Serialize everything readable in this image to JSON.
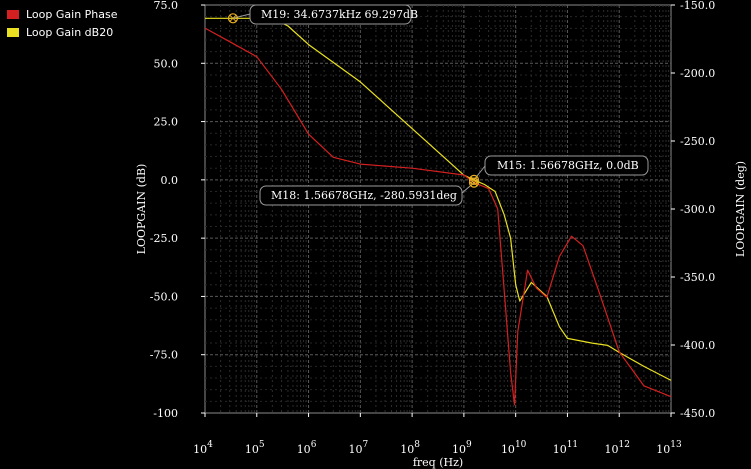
{
  "legend": {
    "items": [
      {
        "label": "Loop Gain Phase",
        "color": "#d42020"
      },
      {
        "label": "Loop Gain dB20",
        "color": "#e8e020"
      }
    ]
  },
  "chart_data": {
    "type": "line",
    "xlabel": "freq (Hz)",
    "ylabel_left": "LOOPGAIN (dB)",
    "ylabel_right": "LOOPGAIN (deg)",
    "x_scale": "log",
    "xlim": [
      10000,
      10000000000000
    ],
    "ylim_left": [
      -100,
      75
    ],
    "ylim_right": [
      -450,
      -150
    ],
    "x_ticks": [
      {
        "base": "10",
        "exp": "4",
        "value": 10000
      },
      {
        "base": "10",
        "exp": "5",
        "value": 100000
      },
      {
        "base": "10",
        "exp": "6",
        "value": 1000000
      },
      {
        "base": "10",
        "exp": "7",
        "value": 10000000
      },
      {
        "base": "10",
        "exp": "8",
        "value": 100000000
      },
      {
        "base": "10",
        "exp": "9",
        "value": 1000000000
      },
      {
        "base": "10",
        "exp": "10",
        "value": 10000000000
      },
      {
        "base": "10",
        "exp": "11",
        "value": 100000000000
      },
      {
        "base": "10",
        "exp": "12",
        "value": 1000000000000
      },
      {
        "base": "10",
        "exp": "13",
        "value": 10000000000000
      }
    ],
    "y_ticks_left": [
      "75.0",
      "50.0",
      "25.0",
      "0.0",
      "-25.0",
      "-50.0",
      "-75.0",
      "-100"
    ],
    "y_ticks_left_values": [
      75,
      50,
      25,
      0,
      -25,
      -50,
      -75,
      -100
    ],
    "y_ticks_right": [
      "-150.0",
      "-200.0",
      "-250.0",
      "-300.0",
      "-350.0",
      "-400.0",
      "-450.0"
    ],
    "y_ticks_right_values": [
      -150,
      -200,
      -250,
      -300,
      -350,
      -400,
      -450
    ],
    "grid": true,
    "legend_position": "top-left outside",
    "series": [
      {
        "name": "Loop Gain dB20",
        "color": "#e8e020",
        "axis": "left",
        "points": [
          [
            10000,
            69.3
          ],
          [
            34673.7,
            69.3
          ],
          [
            200000,
            69.3
          ],
          [
            400000,
            66
          ],
          [
            1000000,
            58
          ],
          [
            10000000,
            42
          ],
          [
            100000000,
            22
          ],
          [
            1000000000,
            2
          ],
          [
            1566780000,
            0
          ],
          [
            2500000000,
            -2
          ],
          [
            4000000000,
            -5
          ],
          [
            6000000000,
            -15
          ],
          [
            8000000000,
            -25
          ],
          [
            10000000000,
            -45
          ],
          [
            12000000000,
            -52
          ],
          [
            20000000000,
            -44
          ],
          [
            40000000000,
            -50
          ],
          [
            70000000000,
            -63
          ],
          [
            100000000000,
            -68
          ],
          [
            300000000000,
            -70
          ],
          [
            600000000000,
            -71
          ],
          [
            1000000000000,
            -74
          ],
          [
            3000000000000,
            -80
          ],
          [
            10000000000000,
            -86
          ]
        ]
      },
      {
        "name": "Loop Gain Phase",
        "color": "#d42020",
        "axis": "right",
        "points": [
          [
            10000,
            -167
          ],
          [
            30000,
            -177
          ],
          [
            100000,
            -188
          ],
          [
            300000,
            -212
          ],
          [
            1000000,
            -245
          ],
          [
            3000000,
            -262
          ],
          [
            10000000,
            -267
          ],
          [
            100000000,
            -270
          ],
          [
            1000000000,
            -275
          ],
          [
            1566780000,
            -280.6
          ],
          [
            3000000000,
            -285
          ],
          [
            4500000000,
            -300
          ],
          [
            6000000000,
            -360
          ],
          [
            8000000000,
            -420
          ],
          [
            9500000000,
            -444
          ],
          [
            11000000000,
            -390
          ],
          [
            17000000000,
            -345
          ],
          [
            25000000000,
            -358
          ],
          [
            40000000000,
            -365
          ],
          [
            70000000000,
            -335
          ],
          [
            120000000000,
            -320
          ],
          [
            200000000000,
            -327
          ],
          [
            400000000000,
            -360
          ],
          [
            1000000000000,
            -405
          ],
          [
            3000000000000,
            -430
          ],
          [
            10000000000000,
            -438
          ]
        ]
      }
    ],
    "markers": [
      {
        "label": "M19: 34.6737kHz 69.297dB",
        "x": 34673.7,
        "y": 69.297,
        "axis": "left"
      },
      {
        "label": "M15: 1.56678GHz, 0.0dB",
        "x": 1566780000,
        "y": 0.0,
        "axis": "left"
      },
      {
        "label": "M18: 1.56678GHz, -280.5931deg",
        "x": 1566780000,
        "y": -280.5931,
        "axis": "right"
      }
    ]
  }
}
